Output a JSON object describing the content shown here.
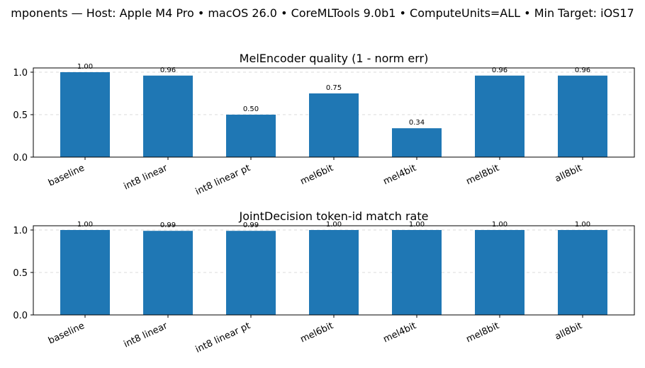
{
  "figure": {
    "suptitle": "mponents — Host: Apple M4 Pro • macOS 26.0 • CoreMLTools 9.0b1 • ComputeUnits=ALL • Min Target: iOS17"
  },
  "colors": {
    "bar": "#1f77b4",
    "grid": "#cccccc"
  },
  "chart_data": [
    {
      "type": "bar",
      "title": "MelEncoder quality (1 - norm err)",
      "categories": [
        "baseline",
        "int8 linear",
        "int8 linear pt",
        "mel6bit",
        "mel4bit",
        "mel8bit",
        "all8bit"
      ],
      "values": [
        1.0,
        0.96,
        0.5,
        0.75,
        0.34,
        0.96,
        0.96
      ],
      "value_labels": [
        "1.00",
        "0.96",
        "0.50",
        "0.75",
        "0.34",
        "0.96",
        "0.96"
      ],
      "yticks": [
        "0.0",
        "0.5",
        "1.0"
      ],
      "ytick_values": [
        0,
        0.5,
        1.0
      ],
      "ylim": [
        0,
        1.05
      ],
      "xlabel": "",
      "ylabel": "",
      "grid": "y-dashed"
    },
    {
      "type": "bar",
      "title": "JointDecision token-id match rate",
      "categories": [
        "baseline",
        "int8 linear",
        "int8 linear pt",
        "mel6bit",
        "mel4bit",
        "mel8bit",
        "all8bit"
      ],
      "values": [
        1.0,
        0.99,
        0.99,
        1.0,
        1.0,
        1.0,
        1.0
      ],
      "value_labels": [
        "1.00",
        "0.99",
        "0.99",
        "1.00",
        "1.00",
        "1.00",
        "1.00"
      ],
      "yticks": [
        "0.0",
        "0.5",
        "1.0"
      ],
      "ytick_values": [
        0,
        0.5,
        1.0
      ],
      "ylim": [
        0,
        1.05
      ],
      "xlabel": "",
      "ylabel": "",
      "grid": "y-dashed"
    }
  ]
}
